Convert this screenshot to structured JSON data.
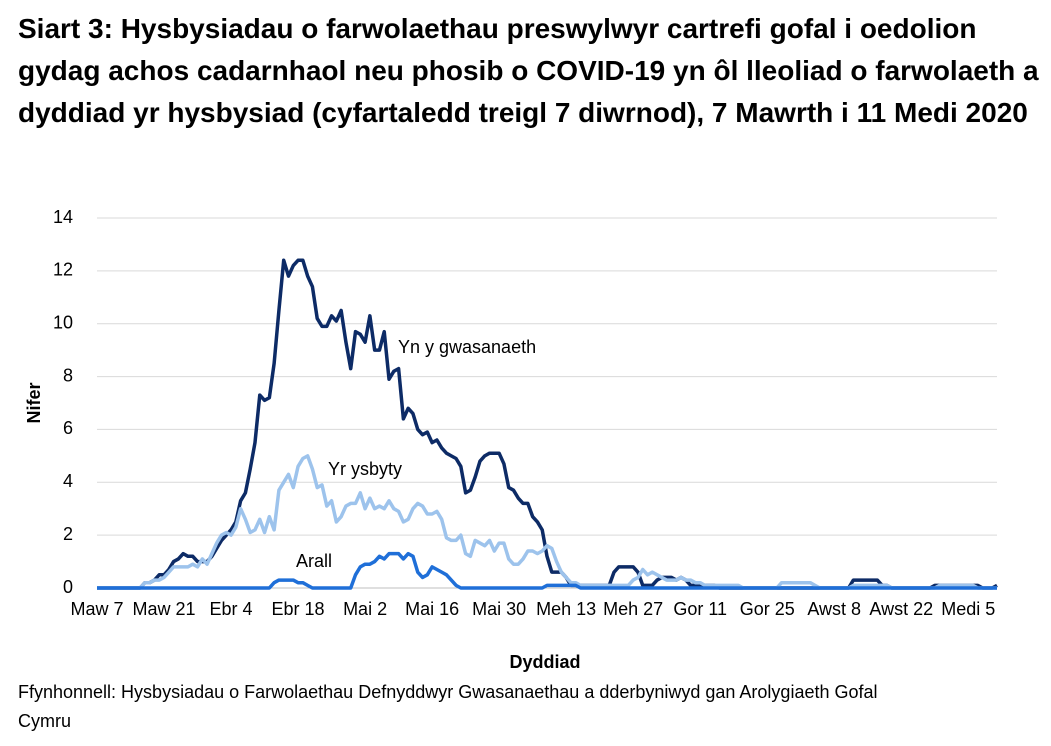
{
  "chart_data": {
    "type": "line",
    "title": "Siart 3: Hysbysiadau o farwolaethau preswylwyr cartrefi gofal i oedolion gydag achos cadarnhaol neu phosib o COVID-19 yn ôl lleoliad o farwolaeth a dyddiad yr hysbysiad (cyfartaledd treigl 7 diwrnod), 7 Mawrth i 11 Medi 2020",
    "x_label": "Dyddiad",
    "y_label": "Nifer",
    "source": "Ffynhonnell: Hysbysiadau o Farwolaethau Defnyddwyr Gwasanaethau a dderbyniwyd gan Arolygiaeth Gofal Cymru",
    "ylim": [
      0,
      14
    ],
    "yticks": [
      0,
      2,
      4,
      6,
      8,
      10,
      12,
      14
    ],
    "grid": true,
    "categories": [
      "Maw 7",
      null,
      null,
      null,
      null,
      null,
      null,
      null,
      null,
      null,
      null,
      null,
      null,
      null,
      "Maw 21",
      null,
      null,
      null,
      null,
      null,
      null,
      null,
      null,
      null,
      null,
      null,
      null,
      null,
      "Ebr 4",
      null,
      null,
      null,
      null,
      null,
      null,
      null,
      null,
      null,
      null,
      null,
      null,
      null,
      "Ebr 18",
      null,
      null,
      null,
      null,
      null,
      null,
      null,
      null,
      null,
      null,
      null,
      null,
      null,
      "Mai 2",
      null,
      null,
      null,
      null,
      null,
      null,
      null,
      null,
      null,
      null,
      null,
      null,
      null,
      "Mai 16",
      null,
      null,
      null,
      null,
      null,
      null,
      null,
      null,
      null,
      null,
      null,
      null,
      null,
      "Mai 30",
      null,
      null,
      null,
      null,
      null,
      null,
      null,
      null,
      null,
      null,
      null,
      null,
      null,
      "Meh 13",
      null,
      null,
      null,
      null,
      null,
      null,
      null,
      null,
      null,
      null,
      null,
      null,
      null,
      "Meh 27",
      null,
      null,
      null,
      null,
      null,
      null,
      null,
      null,
      null,
      null,
      null,
      null,
      null,
      "Gor 11",
      null,
      null,
      null,
      null,
      null,
      null,
      null,
      null,
      null,
      null,
      null,
      null,
      null,
      "Gor 25",
      null,
      null,
      null,
      null,
      null,
      null,
      null,
      null,
      null,
      null,
      null,
      null,
      null,
      "Awst 8",
      null,
      null,
      null,
      null,
      null,
      null,
      null,
      null,
      null,
      null,
      null,
      null,
      null,
      "Awst 22",
      null,
      null,
      null,
      null,
      null,
      null,
      null,
      null,
      null,
      null,
      null,
      null,
      null,
      "Medi 5",
      null,
      null,
      null,
      null,
      null,
      null
    ],
    "series": [
      {
        "name": "Yn y gwasanaeth",
        "color": "#0d2b66",
        "values": [
          0,
          0,
          0,
          0,
          0,
          0,
          0,
          0,
          0,
          0,
          0.2,
          0.2,
          0.3,
          0.5,
          0.5,
          0.7,
          1.0,
          1.1,
          1.3,
          1.2,
          1.2,
          1.0,
          1.0,
          1.0,
          1.2,
          1.5,
          1.8,
          2.0,
          2.2,
          2.5,
          3.3,
          3.6,
          4.5,
          5.5,
          7.3,
          7.1,
          7.2,
          8.5,
          10.5,
          12.4,
          11.8,
          12.2,
          12.4,
          12.4,
          11.8,
          11.4,
          10.2,
          9.9,
          9.9,
          10.3,
          10.1,
          10.5,
          9.3,
          8.3,
          9.7,
          9.6,
          9.3,
          10.3,
          9.0,
          9.0,
          9.7,
          7.9,
          8.2,
          8.3,
          6.4,
          6.8,
          6.6,
          6.0,
          5.8,
          5.9,
          5.5,
          5.6,
          5.3,
          5.1,
          5.0,
          4.9,
          4.6,
          3.6,
          3.7,
          4.2,
          4.8,
          5.0,
          5.1,
          5.1,
          5.1,
          4.7,
          3.8,
          3.7,
          3.4,
          3.2,
          3.2,
          2.7,
          2.5,
          2.2,
          1.2,
          0.6,
          0.6,
          0.6,
          0.4,
          0.1,
          0.1,
          0.1,
          0.1,
          0.1,
          0.1,
          0.1,
          0.1,
          0.1,
          0.6,
          0.8,
          0.8,
          0.8,
          0.8,
          0.6,
          0.1,
          0.1,
          0.1,
          0.3,
          0.4,
          0.4,
          0.4,
          0.3,
          0.4,
          0.3,
          0.1,
          0.1,
          0.1,
          0.1,
          0.1,
          0.1,
          0,
          0,
          0,
          0,
          0,
          0,
          0,
          0,
          0,
          0,
          0,
          0,
          0,
          0,
          0,
          0,
          0,
          0,
          0,
          0,
          0,
          0,
          0,
          0,
          0,
          0,
          0,
          0,
          0.3,
          0.3,
          0.3,
          0.3,
          0.3,
          0.3,
          0.1,
          0.1,
          0,
          0,
          0,
          0,
          0,
          0,
          0,
          0,
          0,
          0.1,
          0.1,
          0.1,
          0.1,
          0.1,
          0.1,
          0.1,
          0.1,
          0.1,
          0.1,
          0,
          0,
          0,
          0.1
        ]
      },
      {
        "name": "Yr ysbyty",
        "color": "#9dc3ec",
        "values": [
          0,
          0,
          0,
          0,
          0,
          0,
          0,
          0,
          0,
          0,
          0.2,
          0.2,
          0.3,
          0.3,
          0.4,
          0.6,
          0.8,
          0.8,
          0.8,
          0.8,
          0.9,
          0.8,
          1.1,
          0.9,
          1.3,
          1.7,
          2.0,
          2.1,
          2.0,
          2.3,
          3.0,
          2.6,
          2.1,
          2.2,
          2.6,
          2.1,
          2.7,
          2.2,
          3.7,
          4.0,
          4.3,
          3.8,
          4.6,
          4.9,
          5.0,
          4.5,
          3.8,
          3.9,
          3.1,
          3.3,
          2.5,
          2.7,
          3.1,
          3.2,
          3.2,
          3.6,
          3.0,
          3.4,
          3.0,
          3.1,
          3.0,
          3.3,
          3.0,
          2.9,
          2.5,
          2.6,
          3.0,
          3.2,
          3.1,
          2.8,
          2.8,
          2.9,
          2.6,
          1.9,
          1.8,
          1.8,
          2.0,
          1.3,
          1.2,
          1.8,
          1.7,
          1.6,
          1.8,
          1.4,
          1.7,
          1.7,
          1.1,
          0.9,
          0.9,
          1.1,
          1.4,
          1.4,
          1.3,
          1.4,
          1.6,
          1.5,
          1.0,
          0.6,
          0.4,
          0.2,
          0.2,
          0.1,
          0.1,
          0.1,
          0.1,
          0.1,
          0.1,
          0.1,
          0.1,
          0.1,
          0.1,
          0.1,
          0.3,
          0.4,
          0.7,
          0.5,
          0.6,
          0.5,
          0.4,
          0.3,
          0.3,
          0.3,
          0.4,
          0.3,
          0.3,
          0.2,
          0.2,
          0.1,
          0.1,
          0.1,
          0.1,
          0.1,
          0.1,
          0.1,
          0.1,
          0,
          0,
          0,
          0,
          0,
          0,
          0,
          0,
          0.2,
          0.2,
          0.2,
          0.2,
          0.2,
          0.2,
          0.2,
          0.1,
          0,
          0,
          0,
          0,
          0,
          0,
          0,
          0.1,
          0.1,
          0.1,
          0.1,
          0.1,
          0.1,
          0.1,
          0.1,
          0,
          0,
          0,
          0,
          0,
          0,
          0,
          0,
          0,
          0,
          0.1,
          0.1,
          0.1,
          0.1,
          0.1,
          0.1,
          0.1,
          0.1,
          0,
          0,
          0,
          0,
          0
        ]
      },
      {
        "name": "Arall",
        "color": "#1f6fd8",
        "values": [
          0,
          0,
          0,
          0,
          0,
          0,
          0,
          0,
          0,
          0,
          0,
          0,
          0,
          0,
          0,
          0,
          0,
          0,
          0,
          0,
          0,
          0,
          0,
          0,
          0,
          0,
          0,
          0,
          0,
          0,
          0,
          0,
          0,
          0,
          0,
          0,
          0,
          0.2,
          0.3,
          0.3,
          0.3,
          0.3,
          0.2,
          0.2,
          0.1,
          0,
          0,
          0,
          0,
          0,
          0,
          0,
          0,
          0,
          0.5,
          0.8,
          0.9,
          0.9,
          1.0,
          1.2,
          1.1,
          1.3,
          1.3,
          1.3,
          1.1,
          1.3,
          1.2,
          0.6,
          0.4,
          0.5,
          0.8,
          0.7,
          0.6,
          0.5,
          0.3,
          0.1,
          0,
          0,
          0,
          0,
          0,
          0,
          0,
          0,
          0,
          0,
          0,
          0,
          0,
          0,
          0,
          0,
          0,
          0,
          0.1,
          0.1,
          0.1,
          0.1,
          0.1,
          0.1,
          0.1,
          0,
          0,
          0,
          0,
          0,
          0,
          0,
          0,
          0,
          0,
          0,
          0,
          0,
          0,
          0,
          0,
          0,
          0,
          0,
          0,
          0,
          0,
          0,
          0,
          0,
          0,
          0,
          0,
          0,
          0,
          0,
          0,
          0,
          0,
          0,
          0,
          0,
          0,
          0,
          0,
          0,
          0,
          0,
          0,
          0,
          0,
          0,
          0,
          0,
          0,
          0,
          0,
          0,
          0,
          0,
          0,
          0,
          0,
          0,
          0,
          0,
          0,
          0,
          0,
          0,
          0,
          0,
          0,
          0,
          0,
          0,
          0,
          0,
          0,
          0,
          0,
          0,
          0,
          0,
          0,
          0,
          0,
          0,
          0,
          0,
          0,
          0,
          0
        ]
      }
    ]
  }
}
